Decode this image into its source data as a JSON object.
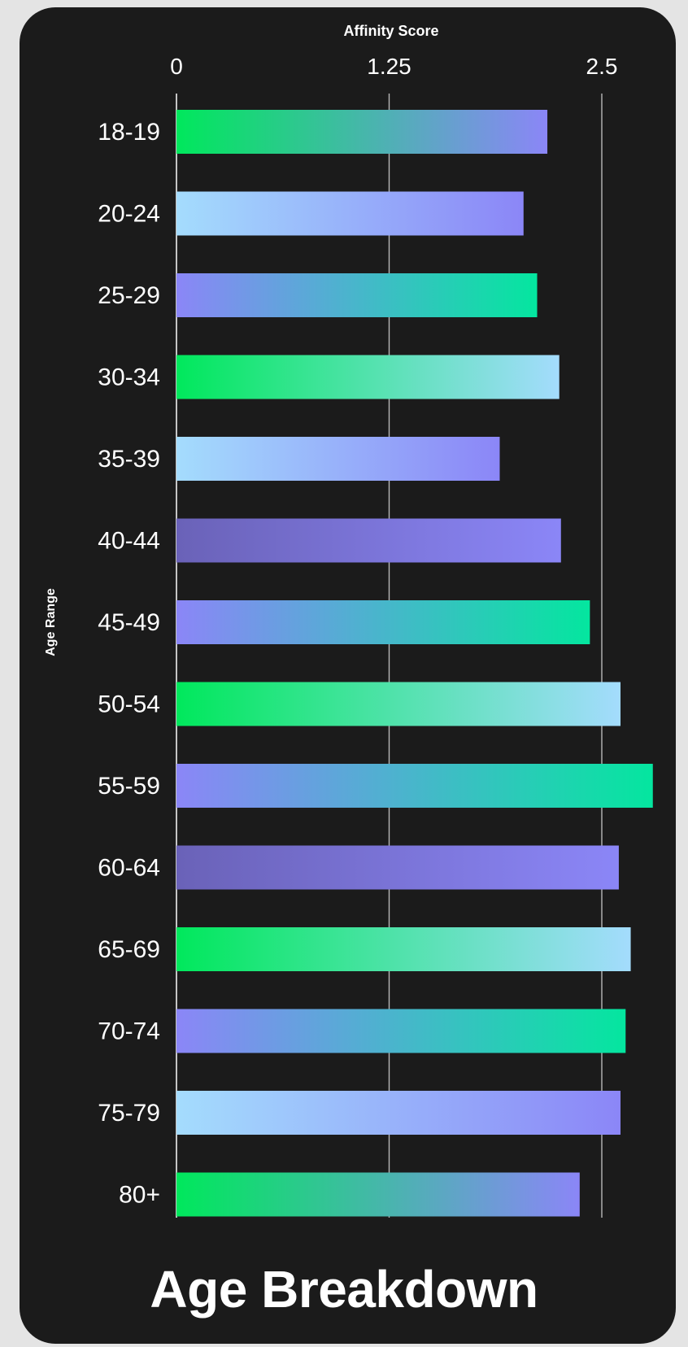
{
  "chart_data": {
    "type": "bar",
    "orientation": "horizontal",
    "title": "Age Breakdown",
    "xlabel": "Affinity Score",
    "ylabel": "Age Range",
    "xlim": [
      0,
      2.75
    ],
    "xticks": [
      0,
      1.25,
      2.5
    ],
    "xtick_labels": [
      "0",
      "1.25",
      "2.5"
    ],
    "grid": true,
    "categories": [
      "18-19",
      "20-24",
      "25-29",
      "30-34",
      "35-39",
      "40-44",
      "45-49",
      "50-54",
      "55-59",
      "60-64",
      "65-69",
      "70-74",
      "75-79",
      "80+"
    ],
    "values": [
      2.18,
      2.04,
      2.12,
      2.25,
      1.9,
      2.26,
      2.43,
      2.61,
      2.8,
      2.6,
      2.67,
      2.64,
      2.61,
      2.37
    ],
    "bar_gradients": [
      [
        "#00e85c",
        "#8b86f7"
      ],
      [
        "#a4dcfd",
        "#8b86f7"
      ],
      [
        "#8b86f7",
        "#04e69f"
      ],
      [
        "#00e85c",
        "#a4dcfd"
      ],
      [
        "#a4dcfd",
        "#8b86f7"
      ],
      [
        "#6a62b8",
        "#8b86f7"
      ],
      [
        "#8b86f7",
        "#04e69f"
      ],
      [
        "#00e85c",
        "#a4dcfd"
      ],
      [
        "#8b86f7",
        "#04e69f"
      ],
      [
        "#6a62b8",
        "#8b86f7"
      ],
      [
        "#00e85c",
        "#a4dcfd"
      ],
      [
        "#8b86f7",
        "#04e69f"
      ],
      [
        "#a4dcfd",
        "#8b86f7"
      ],
      [
        "#00e85c",
        "#8b86f7"
      ]
    ],
    "colors": {
      "background": "#1b1b1b",
      "text": "#ffffff",
      "grid": "#b8b8b8"
    }
  }
}
